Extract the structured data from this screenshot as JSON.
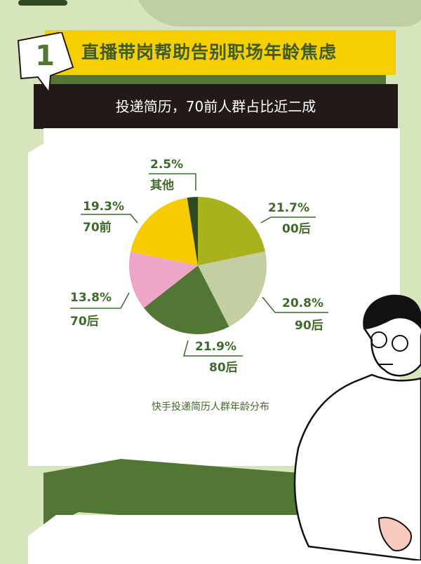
{
  "header": {
    "badge_number": "1",
    "title": "直播带岗帮助告别职场年龄焦虑",
    "subtitle": "投递简历，70前人群占比近二成"
  },
  "chart_data": {
    "type": "pie",
    "title": "",
    "caption": "快手投递简历人群年龄分布",
    "start": "top",
    "direction": "clockwise",
    "slices": [
      {
        "label": "00后",
        "value": 21.7,
        "value_label": "21.7%",
        "color": "#a9b11d"
      },
      {
        "label": "90后",
        "value": 20.8,
        "value_label": "20.8%",
        "color": "#c3cfa3"
      },
      {
        "label": "80后",
        "value": 21.9,
        "value_label": "21.9%",
        "color": "#527633"
      },
      {
        "label": "70后",
        "value": 13.8,
        "value_label": "13.8%",
        "color": "#eea6c8"
      },
      {
        "label": "70前",
        "value": 19.3,
        "value_label": "19.3%",
        "color": "#f6cc00"
      },
      {
        "label": "其他",
        "value": 2.5,
        "value_label": "2.5%",
        "color": "#2f4a22"
      }
    ]
  }
}
